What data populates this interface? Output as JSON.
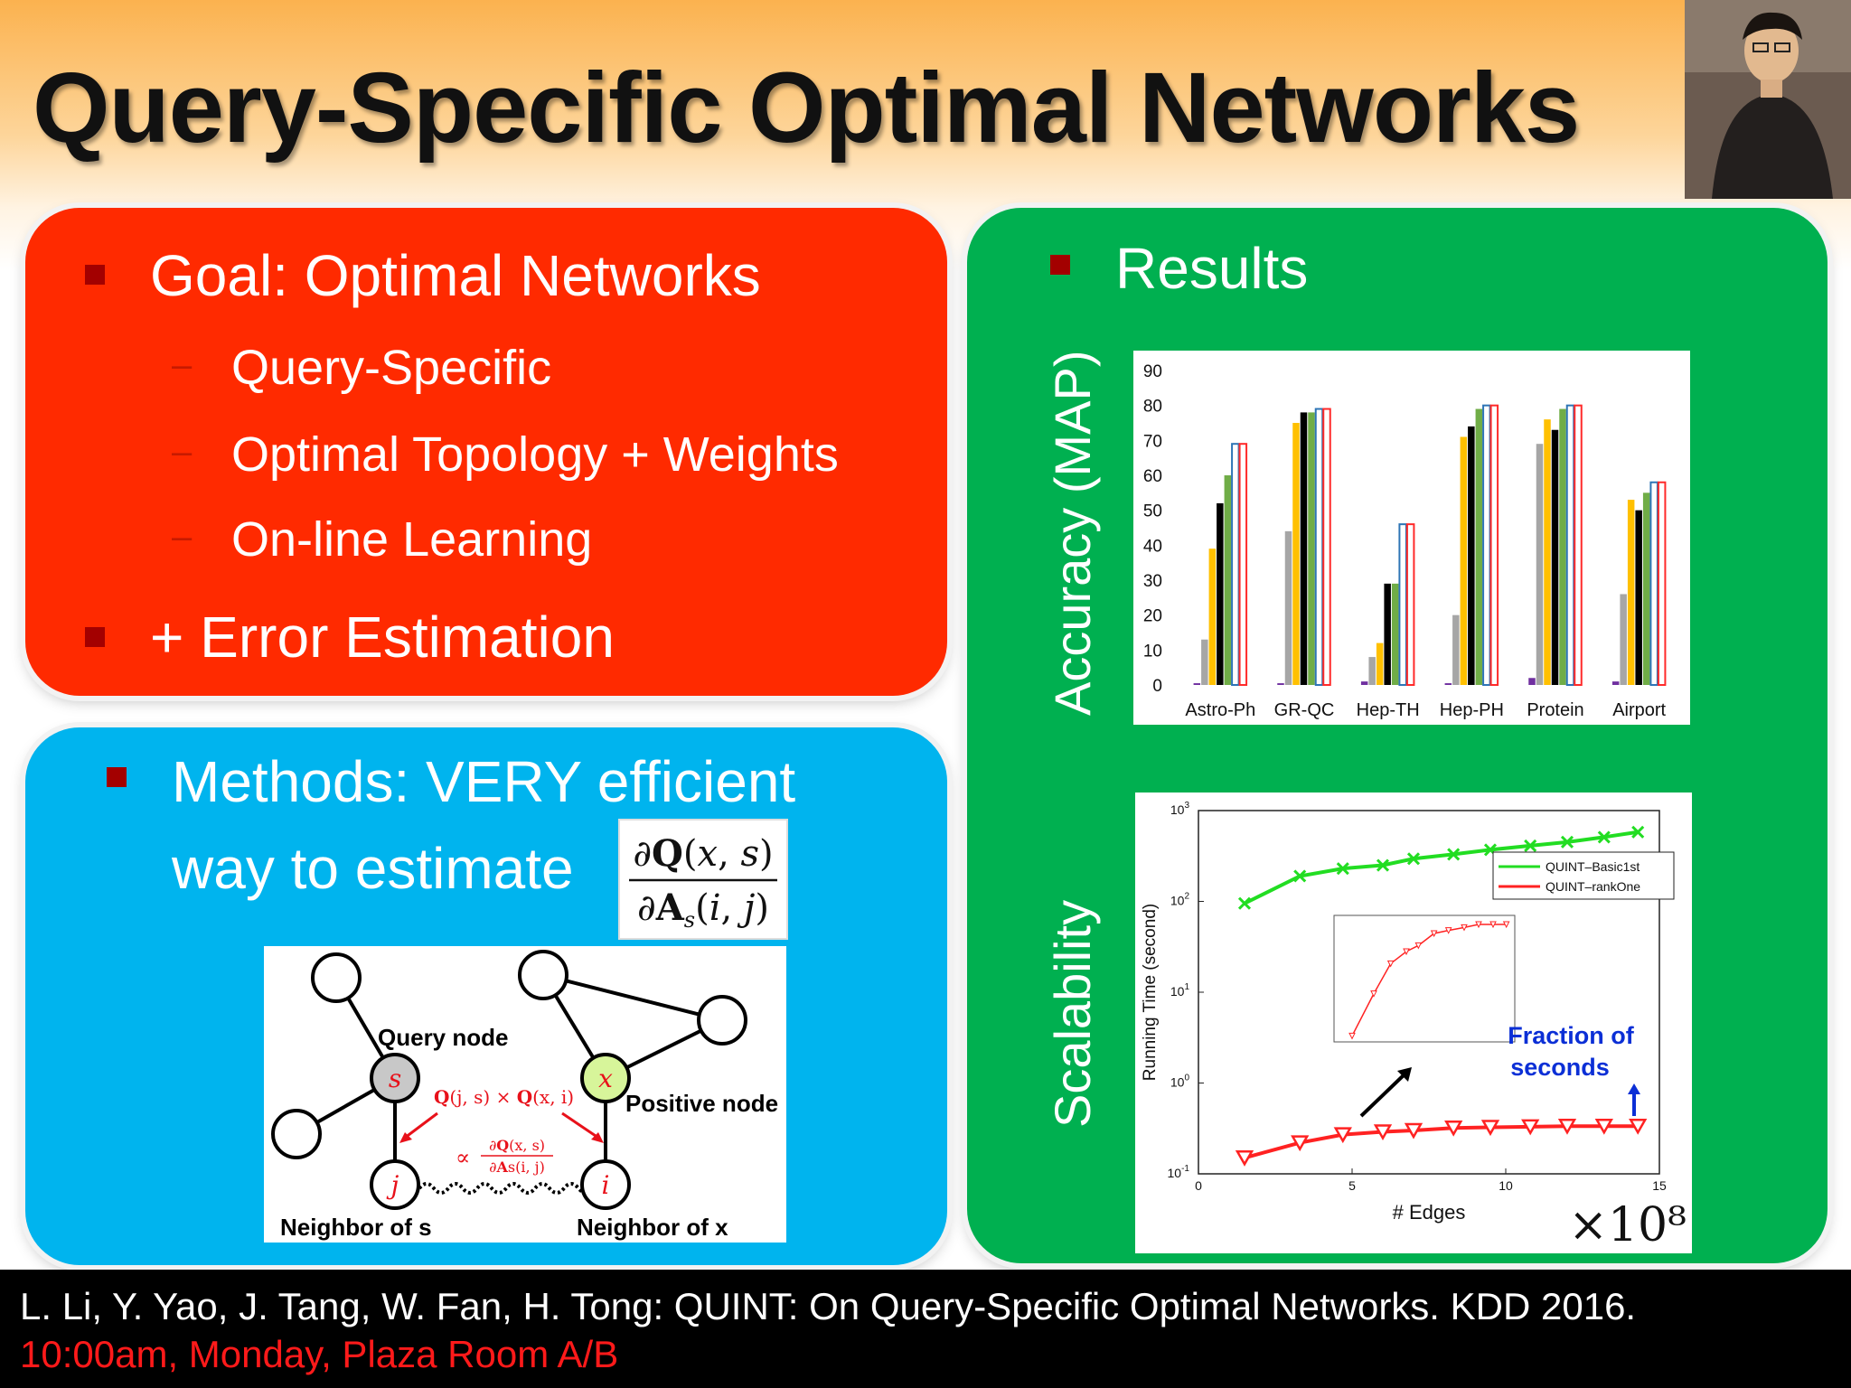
{
  "slide": {
    "title": "Query-Specific Optimal Networks"
  },
  "left_panel": {
    "goal": "Goal: Optimal Networks",
    "sub_items": [
      "Query-Specific",
      "Optimal Topology + Weights",
      "On-line Learning"
    ],
    "error": "+ Error Estimation"
  },
  "methods_panel": {
    "line1": "Methods: VERY efficient",
    "line2": "way to estimate"
  },
  "diagram": {
    "query_label": "Query node",
    "positive_label": "Positive node",
    "neighbor_s": "Neighbor of s",
    "neighbor_x": "Neighbor of x",
    "node_s": "s",
    "node_x": "x",
    "node_j": "j",
    "node_i": "i"
  },
  "results_panel": {
    "heading": "Results",
    "accuracy_label": "Accuracy (MAP)",
    "scalability_label": "Scalability"
  },
  "chart_data": [
    {
      "type": "bar",
      "categories": [
        "Astro-Ph",
        "GR-QC",
        "Hep-TH",
        "Hep-PH",
        "Protein",
        "Airport"
      ],
      "ylim": [
        0,
        90
      ],
      "yticks": [
        0,
        10,
        20,
        30,
        40,
        50,
        60,
        70,
        80,
        90
      ],
      "series": [
        {
          "color": "#7030a0",
          "values": [
            0.5,
            0.5,
            1,
            0.5,
            2,
            1
          ]
        },
        {
          "color": "#a6a6a6",
          "values": [
            13,
            44,
            8,
            20,
            69,
            26
          ]
        },
        {
          "color": "#ffc000",
          "values": [
            39,
            75,
            12,
            71,
            76,
            53
          ]
        },
        {
          "color": "#000000",
          "values": [
            52,
            78,
            29,
            74,
            73,
            50
          ]
        },
        {
          "color": "#70ad47",
          "values": [
            60,
            78,
            29,
            79,
            79,
            55
          ]
        },
        {
          "color": "#2e75b6",
          "values": [
            69,
            79,
            46,
            80,
            80,
            58
          ]
        },
        {
          "color": "#ff2a2a",
          "values": [
            69,
            79,
            46,
            80,
            80,
            58
          ]
        }
      ]
    },
    {
      "type": "line",
      "xlabel": "# Edges",
      "ylabel": "Running Time (second)",
      "xticks": [
        0,
        5,
        10,
        15
      ],
      "ytick_exponents": [
        -1,
        0,
        1,
        2,
        3
      ],
      "x_multiplier": "×10⁸",
      "log_y": true,
      "annotation": "Fraction of seconds",
      "series": [
        {
          "name": "QUINT–Basic1st",
          "color": "#22dd22",
          "x": [
            1.5,
            3.3,
            4.7,
            6.0,
            7.0,
            8.3,
            9.5,
            10.8,
            12.0,
            13.2,
            14.3
          ],
          "y": [
            95,
            190,
            230,
            250,
            295,
            330,
            370,
            410,
            450,
            510,
            580
          ]
        },
        {
          "name": "QUINT–rankOne",
          "color": "#ff2222",
          "x": [
            1.5,
            3.3,
            4.7,
            6.0,
            7.0,
            8.3,
            9.5,
            10.8,
            12.0,
            13.2,
            14.3
          ],
          "y": [
            0.15,
            0.22,
            0.27,
            0.29,
            0.3,
            0.32,
            0.325,
            0.33,
            0.335,
            0.335,
            0.335
          ]
        }
      ]
    }
  ],
  "footer": {
    "citation": "L. Li, Y. Yao, J. Tang, W. Fan, H. Tong: QUINT: On Query-Specific Optimal Networks. KDD 2016.",
    "session": "10:00am, Monday, Plaza Room A/B"
  },
  "colors": {
    "red_panel": "#ff2a00",
    "blue_panel": "#00b4ee",
    "green_panel": "#00b050"
  }
}
